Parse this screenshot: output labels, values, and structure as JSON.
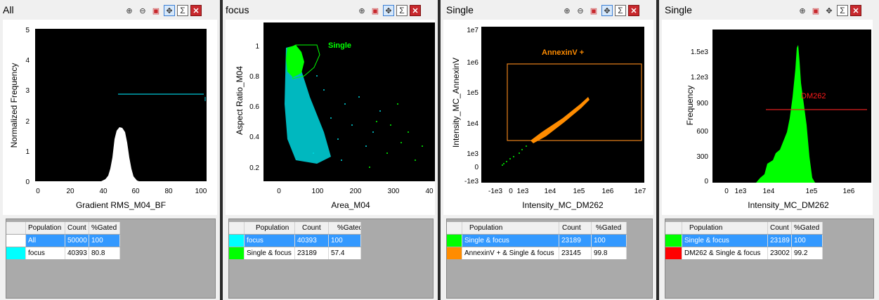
{
  "panels": [
    {
      "title": "All",
      "toolbar": [
        "zoom-in-icon",
        "zoom-out-icon",
        "copy-icon",
        "pan-icon",
        "sum-icon",
        "close-icon"
      ],
      "xlabel": "Gradient RMS_M04_BF",
      "ylabel": "Normalized Frequency",
      "xticks": [
        "0",
        "20",
        "40",
        "60",
        "80",
        "100"
      ],
      "yticks": [
        "0",
        "1",
        "2",
        "3",
        "4",
        "5"
      ],
      "gate_label": "",
      "table": {
        "headers": [
          "Population",
          "Count",
          "%Gated"
        ],
        "rows": [
          {
            "color": "#ffffff",
            "population": "All",
            "count": "50000",
            "gated": "100",
            "selected": true
          },
          {
            "color": "#00ffff",
            "population": "focus",
            "count": "40393",
            "gated": "80.8",
            "selected": false
          }
        ]
      }
    },
    {
      "title": "focus",
      "toolbar": [
        "zoom-in-icon",
        "copy-icon",
        "pan-icon",
        "sum-icon",
        "close-icon"
      ],
      "xlabel": "Area_M04",
      "ylabel": "Aspect Ratio_M04",
      "xticks": [
        "0",
        "100",
        "200",
        "300",
        "40"
      ],
      "yticks": [
        "0.2",
        "0.4",
        "0.6",
        "0.8",
        "1"
      ],
      "gate_label": "Single",
      "table": {
        "headers": [
          "Population",
          "Count",
          "%Gated"
        ],
        "rows": [
          {
            "color": "#00ffff",
            "population": "focus",
            "count": "40393",
            "gated": "100",
            "selected": true
          },
          {
            "color": "#00ff00",
            "population": "Single & focus",
            "count": "23189",
            "gated": "57.4",
            "selected": false
          }
        ]
      }
    },
    {
      "title": "Single",
      "toolbar": [
        "zoom-in-icon",
        "zoom-out-icon",
        "copy-icon",
        "pan-icon",
        "sum-icon",
        "close-icon"
      ],
      "xlabel": "Intensity_MC_DM262",
      "ylabel": "Intensity_MC_AnnexinV",
      "xticks": [
        "-1e3",
        "0",
        "1e3",
        "1e4",
        "1e5",
        "1e6",
        "1e7"
      ],
      "yticks": [
        "-1e3",
        "0",
        "1e3",
        "1e4",
        "1e5",
        "1e6",
        "1e7"
      ],
      "gate_label": "AnnexinV +",
      "table": {
        "headers": [
          "Population",
          "Count",
          "%Gated"
        ],
        "rows": [
          {
            "color": "#00ff00",
            "population": "Single & focus",
            "count": "23189",
            "gated": "100",
            "selected": true
          },
          {
            "color": "#ff8c00",
            "population": "AnnexinV + & Single & focus",
            "count": "23145",
            "gated": "99.8",
            "selected": false
          }
        ]
      }
    },
    {
      "title": "Single",
      "toolbar": [
        "zoom-in-icon",
        "copy-icon",
        "pan-icon",
        "sum-icon",
        "close-icon"
      ],
      "xlabel": "Intensity_MC_DM262",
      "ylabel": "Frequency",
      "xticks": [
        "0",
        "1e3",
        "1e4",
        "1e5",
        "1e6"
      ],
      "yticks": [
        "0",
        "300",
        "600",
        "900",
        "1.2e3",
        "1.5e3"
      ],
      "gate_label": "DM262",
      "table": {
        "headers": [
          "Population",
          "Count",
          "%Gated"
        ],
        "rows": [
          {
            "color": "#00ff00",
            "population": "Single & focus",
            "count": "23189",
            "gated": "100",
            "selected": true
          },
          {
            "color": "#ff0000",
            "population": "DM262 & Single & focus",
            "count": "23002",
            "gated": "99.2",
            "selected": false
          }
        ]
      }
    }
  ]
}
